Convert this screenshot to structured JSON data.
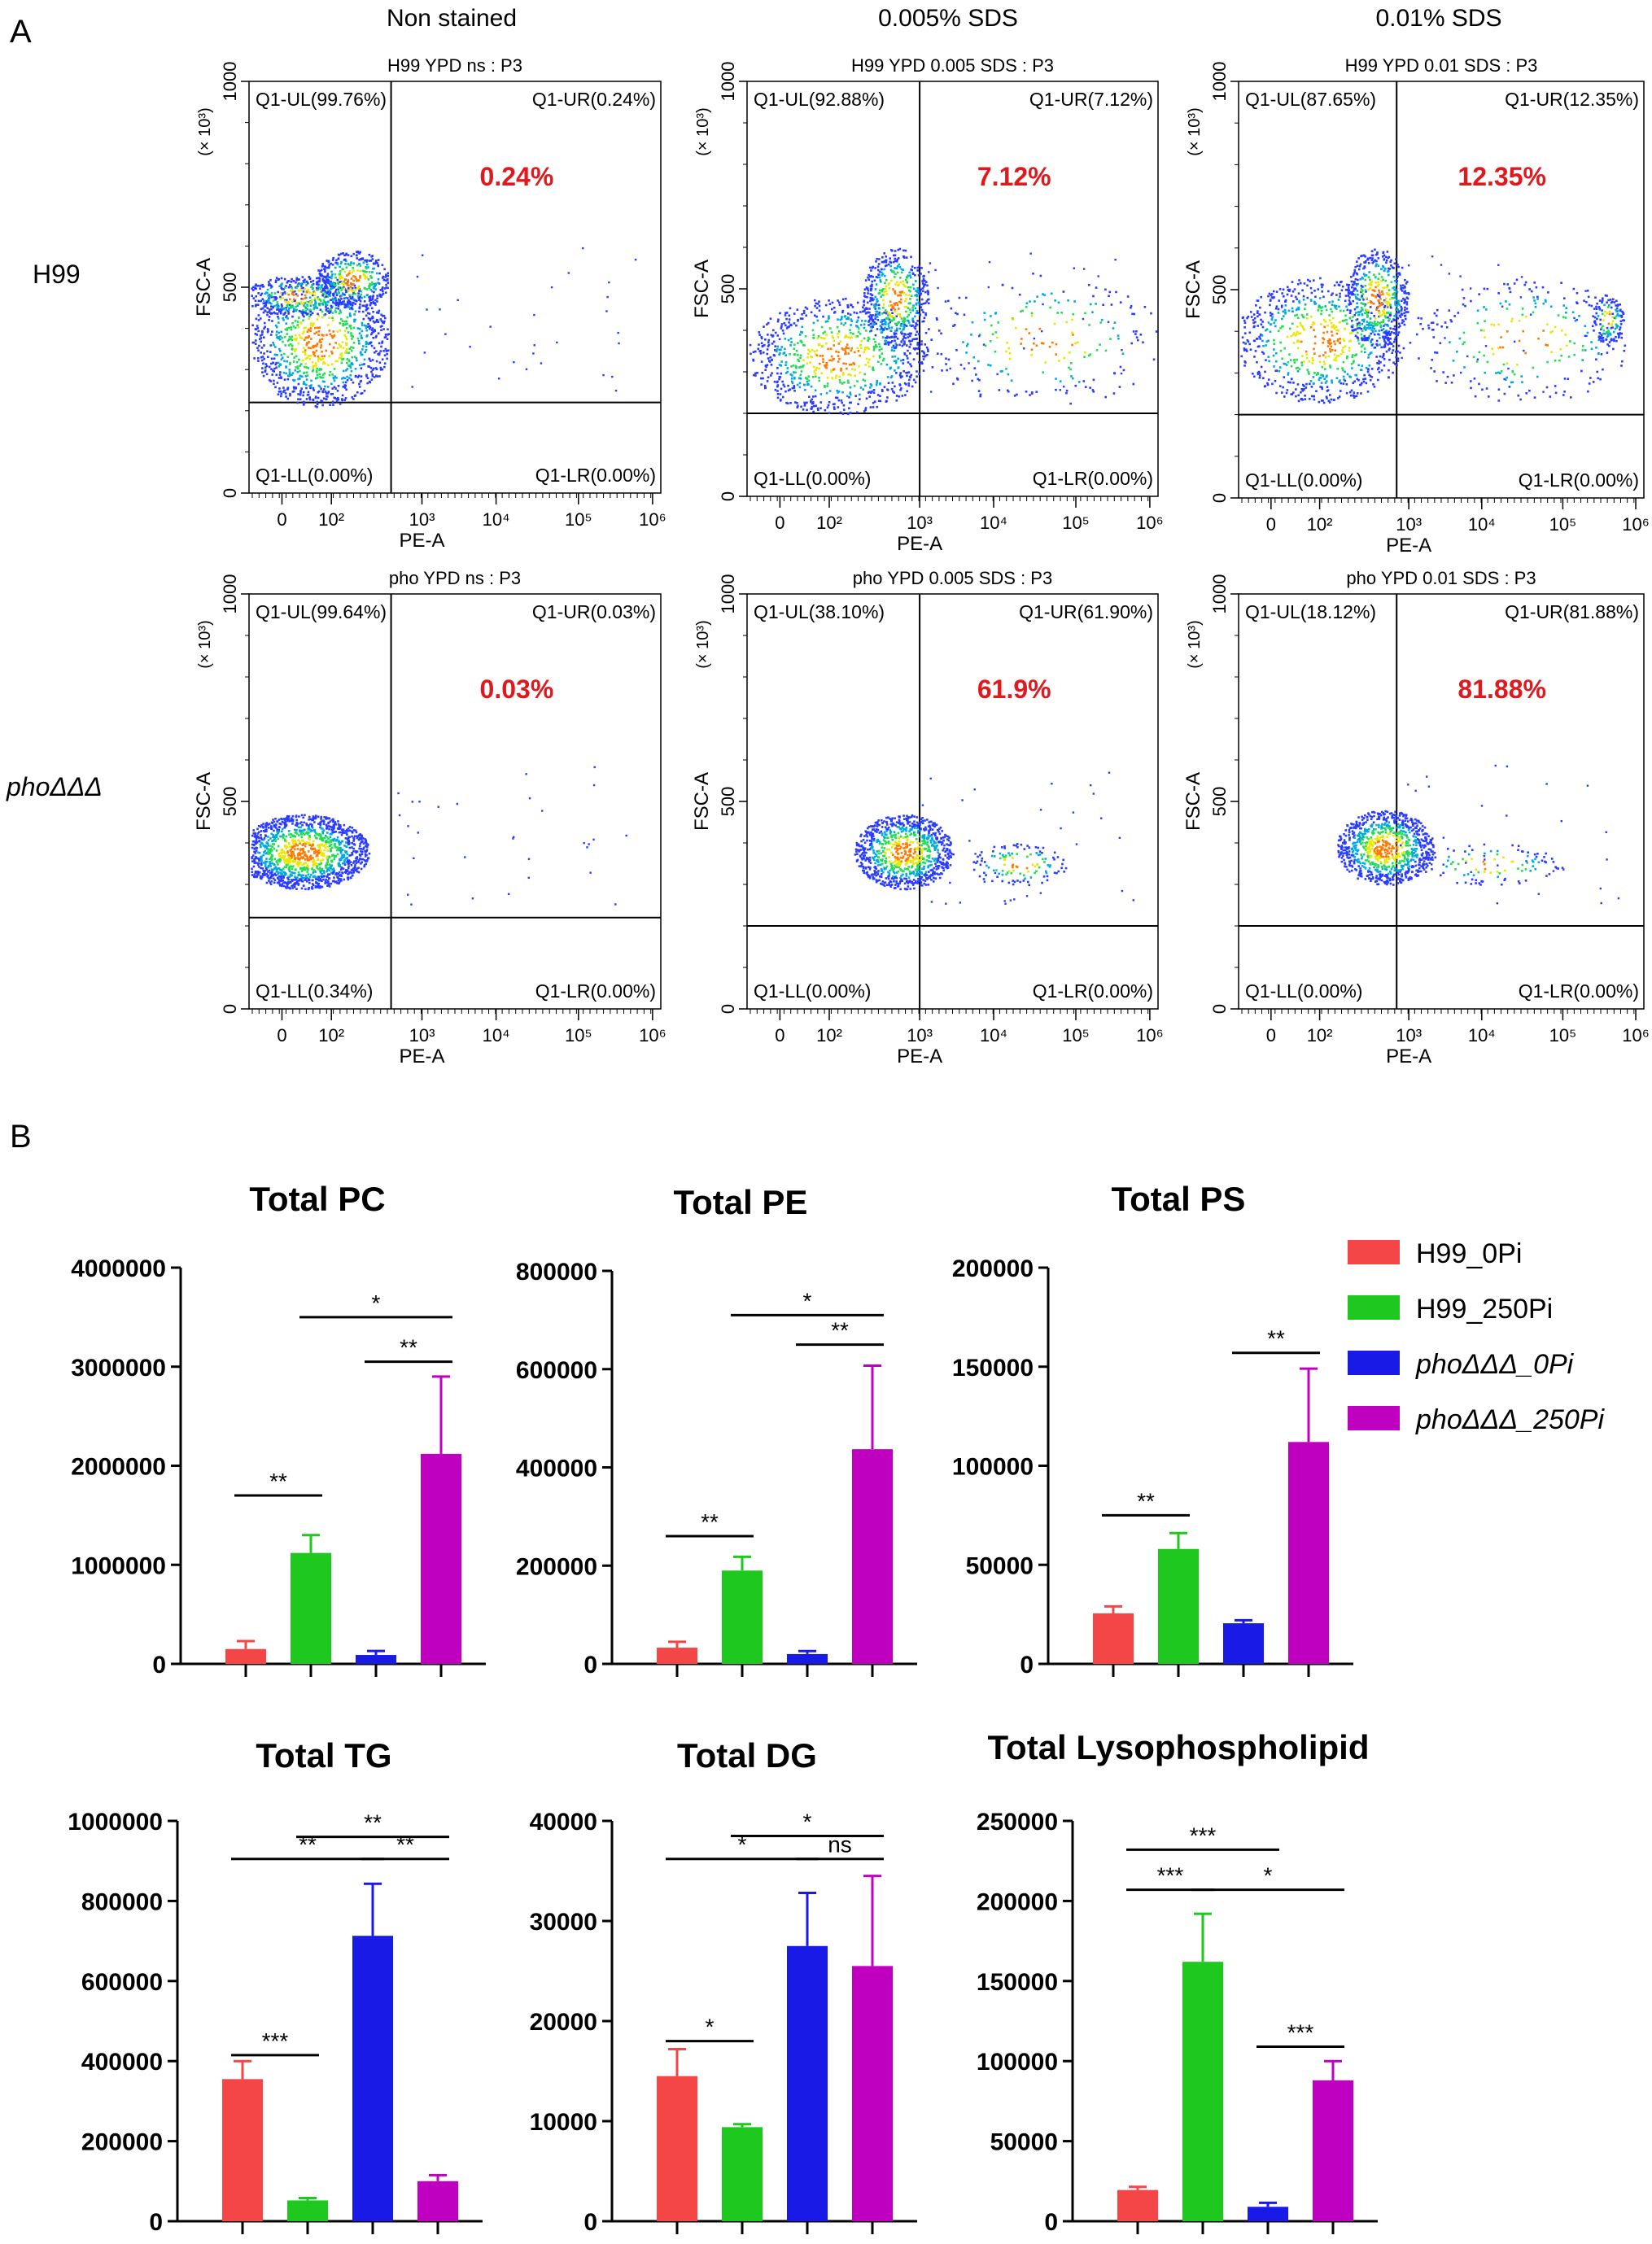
{
  "panels": {
    "a": "A",
    "b": "B"
  },
  "flow": {
    "columns": [
      "Non stained",
      "0.005% SDS",
      "0.01% SDS"
    ],
    "rows": [
      "H99",
      "phoΔΔΔ"
    ],
    "x_axis_label": "PE-A",
    "y_axis_label": "FSC-A",
    "y_unit": "(× 10³)",
    "y_ticks": [
      "0",
      "500",
      "1000"
    ],
    "x_ticks": [
      "0",
      "10²",
      "10³",
      "10⁴",
      "10⁵",
      "10⁶"
    ],
    "plots": [
      {
        "title": "H99 YPD ns : P3",
        "ul": "Q1-UL(99.76%)",
        "ur": "Q1-UR(0.24%)",
        "ll": "Q1-LL(0.00%)",
        "lr": "Q1-LR(0.00%)",
        "highlight": "0.24%"
      },
      {
        "title": "H99 YPD 0.005 SDS : P3",
        "ul": "Q1-UL(92.88%)",
        "ur": "Q1-UR(7.12%)",
        "ll": "Q1-LL(0.00%)",
        "lr": "Q1-LR(0.00%)",
        "highlight": "7.12%"
      },
      {
        "title": "H99 YPD 0.01 SDS : P3",
        "ul": "Q1-UL(87.65%)",
        "ur": "Q1-UR(12.35%)",
        "ll": "Q1-LL(0.00%)",
        "lr": "Q1-LR(0.00%)",
        "highlight": "12.35%"
      },
      {
        "title": "pho YPD ns : P3",
        "ul": "Q1-UL(99.64%)",
        "ur": "Q1-UR(0.03%)",
        "ll": "Q1-LL(0.34%)",
        "lr": "Q1-LR(0.00%)",
        "highlight": "0.03%"
      },
      {
        "title": "pho YPD 0.005 SDS : P3",
        "ul": "Q1-UL(38.10%)",
        "ur": "Q1-UR(61.90%)",
        "ll": "Q1-LL(0.00%)",
        "lr": "Q1-LR(0.00%)",
        "highlight": "61.9%"
      },
      {
        "title": "pho YPD 0.01 SDS : P3",
        "ul": "Q1-UL(18.12%)",
        "ur": "Q1-UR(81.88%)",
        "ll": "Q1-LL(0.00%)",
        "lr": "Q1-LR(0.00%)",
        "highlight": "81.88%"
      }
    ]
  },
  "legend": [
    {
      "name": "H99_0Pi",
      "color": "#f44646"
    },
    {
      "name": "H99_250Pi",
      "color": "#1ec81e"
    },
    {
      "name": "phoΔΔΔ_0Pi",
      "color": "#1a1ae6"
    },
    {
      "name": "phoΔΔΔ_250Pi",
      "color": "#c000c0"
    }
  ],
  "chart_data": [
    {
      "type": "bar",
      "title": "Total PC",
      "categories": [
        "H99_0Pi",
        "H99_250Pi",
        "phoΔΔΔ_0Pi",
        "phoΔΔΔ_250Pi"
      ],
      "values": [
        150000,
        1120000,
        90000,
        2120000
      ],
      "errors": [
        80000,
        180000,
        40000,
        780000
      ],
      "ylim": [
        0,
        4000000
      ],
      "yticks": [
        0,
        1000000,
        2000000,
        3000000,
        4000000
      ],
      "significance": [
        {
          "from": 0,
          "to": 1,
          "label": "**",
          "y": 1700000
        },
        {
          "from": 2,
          "to": 3,
          "label": "**",
          "y": 3050000
        },
        {
          "from": 1,
          "to": 3,
          "label": "*",
          "y": 3500000
        }
      ]
    },
    {
      "type": "bar",
      "title": "Total PE",
      "categories": [
        "H99_0Pi",
        "H99_250Pi",
        "phoΔΔΔ_0Pi",
        "phoΔΔΔ_250Pi"
      ],
      "values": [
        33000,
        190000,
        20000,
        437000
      ],
      "errors": [
        12000,
        28000,
        6000,
        170000
      ],
      "ylim": [
        0,
        800000
      ],
      "yticks": [
        0,
        200000,
        400000,
        600000,
        800000
      ],
      "significance": [
        {
          "from": 0,
          "to": 1,
          "label": "**",
          "y": 260000
        },
        {
          "from": 2,
          "to": 3,
          "label": "**",
          "y": 650000
        },
        {
          "from": 1,
          "to": 3,
          "label": "*",
          "y": 710000
        }
      ]
    },
    {
      "type": "bar",
      "title": "Total PS",
      "categories": [
        "H99_0Pi",
        "H99_250Pi",
        "phoΔΔΔ_0Pi",
        "phoΔΔΔ_250Pi"
      ],
      "values": [
        25500,
        58000,
        20500,
        112000
      ],
      "errors": [
        3500,
        8000,
        1500,
        37000
      ],
      "ylim": [
        0,
        200000
      ],
      "yticks": [
        0,
        50000,
        100000,
        150000,
        200000
      ],
      "significance": [
        {
          "from": 0,
          "to": 1,
          "label": "**",
          "y": 75000
        },
        {
          "from": 2,
          "to": 3,
          "label": "**",
          "y": 157000
        }
      ]
    },
    {
      "type": "bar",
      "title": "Total TG",
      "categories": [
        "H99_0Pi",
        "H99_250Pi",
        "phoΔΔΔ_0Pi",
        "phoΔΔΔ_250Pi"
      ],
      "values": [
        355000,
        52000,
        713000,
        100000
      ],
      "errors": [
        45000,
        6000,
        130000,
        15000
      ],
      "ylim": [
        0,
        1000000
      ],
      "yticks": [
        0,
        200000,
        400000,
        600000,
        800000,
        1000000
      ],
      "significance": [
        {
          "from": 0,
          "to": 1,
          "label": "***",
          "y": 415000
        },
        {
          "from": 0,
          "to": 2,
          "label": "**",
          "y": 905000
        },
        {
          "from": 2,
          "to": 3,
          "label": "**",
          "y": 905000
        },
        {
          "from": 1,
          "to": 3,
          "label": "**",
          "y": 960000
        }
      ]
    },
    {
      "type": "bar",
      "title": "Total DG",
      "categories": [
        "H99_0Pi",
        "H99_250Pi",
        "phoΔΔΔ_0Pi",
        "phoΔΔΔ_250Pi"
      ],
      "values": [
        14500,
        9400,
        27500,
        25500
      ],
      "errors": [
        2700,
        300,
        5300,
        9000
      ],
      "ylim": [
        0,
        40000
      ],
      "yticks": [
        0,
        10000,
        20000,
        30000,
        40000
      ],
      "significance": [
        {
          "from": 0,
          "to": 1,
          "label": "*",
          "y": 18000
        },
        {
          "from": 0,
          "to": 2,
          "label": "*",
          "y": 36200
        },
        {
          "from": 2,
          "to": 3,
          "label": "ns",
          "y": 36200
        },
        {
          "from": 1,
          "to": 3,
          "label": "*",
          "y": 38500
        }
      ]
    },
    {
      "type": "bar",
      "title": "Total Lysophospholipid",
      "categories": [
        "H99_0Pi",
        "H99_250Pi",
        "phoΔΔΔ_0Pi",
        "phoΔΔΔ_250Pi"
      ],
      "values": [
        19500,
        162000,
        9000,
        88000
      ],
      "errors": [
        2000,
        30000,
        2500,
        12000
      ],
      "ylim": [
        0,
        250000
      ],
      "yticks": [
        0,
        50000,
        100000,
        150000,
        200000,
        250000
      ],
      "significance": [
        {
          "from": 0,
          "to": 1,
          "label": "***",
          "y": 207000
        },
        {
          "from": 1,
          "to": 3,
          "label": "*",
          "y": 207000
        },
        {
          "from": 0,
          "to": 2,
          "label": "***",
          "y": 232000
        },
        {
          "from": 2,
          "to": 3,
          "label": "***",
          "y": 109000
        }
      ]
    }
  ]
}
